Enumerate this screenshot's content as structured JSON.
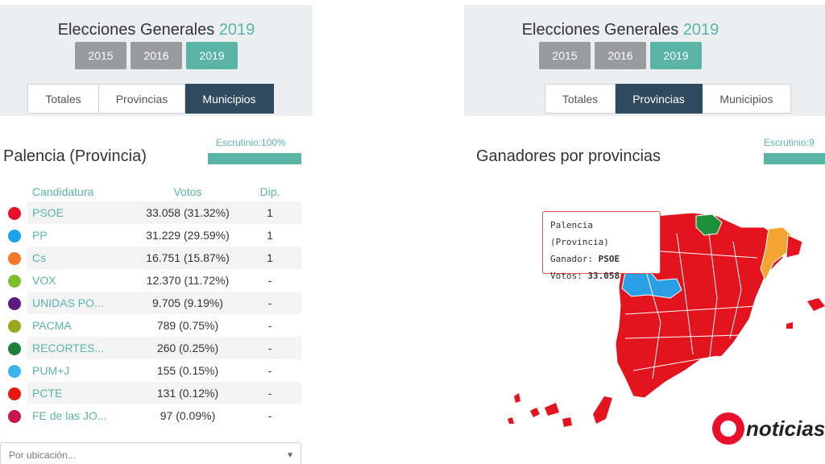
{
  "left_panel": {
    "title_prefix": "Elecciones Generales",
    "title_year": "2019",
    "years": [
      "2015",
      "2016",
      "2019"
    ],
    "active_year": "2019",
    "tabs": [
      "Totales",
      "Provincias",
      "Municipios"
    ],
    "active_tab": "Municipios",
    "escrutinio": "Escrutinio:100%",
    "escrutinio_progress": 1.0,
    "section_title": "Palencia (Provincia)",
    "table": {
      "headers": [
        "Candidatura",
        "Votos",
        "Dip."
      ],
      "rows": [
        {
          "color": "#e8112d",
          "name": "PSOE",
          "votes": "33.058 (31.32%)",
          "dip": "1"
        },
        {
          "color": "#1da1e8",
          "name": "PP",
          "votes": "31.229 (29.59%)",
          "dip": "1"
        },
        {
          "color": "#f07a28",
          "name": "Cs",
          "votes": "16.751 (15.87%)",
          "dip": "1"
        },
        {
          "color": "#7cbf2a",
          "name": "VOX",
          "votes": "12.370 (11.72%)",
          "dip": "-"
        },
        {
          "color": "#5b1a7d",
          "name": "UNIDAS PO...",
          "votes": "9.705 (9.19%)",
          "dip": "-"
        },
        {
          "color": "#9aa61e",
          "name": "PACMA",
          "votes": "789 (0.75%)",
          "dip": "-"
        },
        {
          "color": "#1e7f3a",
          "name": "RECORTES...",
          "votes": "260 (0.25%)",
          "dip": "-"
        },
        {
          "color": "#3ab4f2",
          "name": "PUM+J",
          "votes": "155 (0.15%)",
          "dip": "-"
        },
        {
          "color": "#e8170f",
          "name": "PCTE",
          "votes": "131 (0.12%)",
          "dip": "-"
        },
        {
          "color": "#c8184a",
          "name": "FE de las JO...",
          "votes": "97 (0.09%)",
          "dip": "-"
        }
      ]
    },
    "location_select": {
      "placeholder": "Por ubicación..."
    }
  },
  "right_panel": {
    "title_prefix": "Elecciones Generales",
    "title_year": "2019",
    "years": [
      "2015",
      "2016",
      "2019"
    ],
    "active_year": "2019",
    "tabs": [
      "Totales",
      "Provincias",
      "Municipios"
    ],
    "active_tab": "Provincias",
    "escrutinio": "Escrutinio:9",
    "section_title": "Ganadores por provincias",
    "tooltip": {
      "line1": "Palencia (Provincia)",
      "winner_label": "Ganador:",
      "winner": "PSOE",
      "votes_label": "Votos:",
      "votes": "33.058"
    },
    "map_colors": {
      "psoe": "#e3141e",
      "pp": "#2a9fe5",
      "erc": "#f4a531",
      "pnv": "#1e8f3a"
    }
  },
  "logo": {
    "text": "noticias"
  }
}
